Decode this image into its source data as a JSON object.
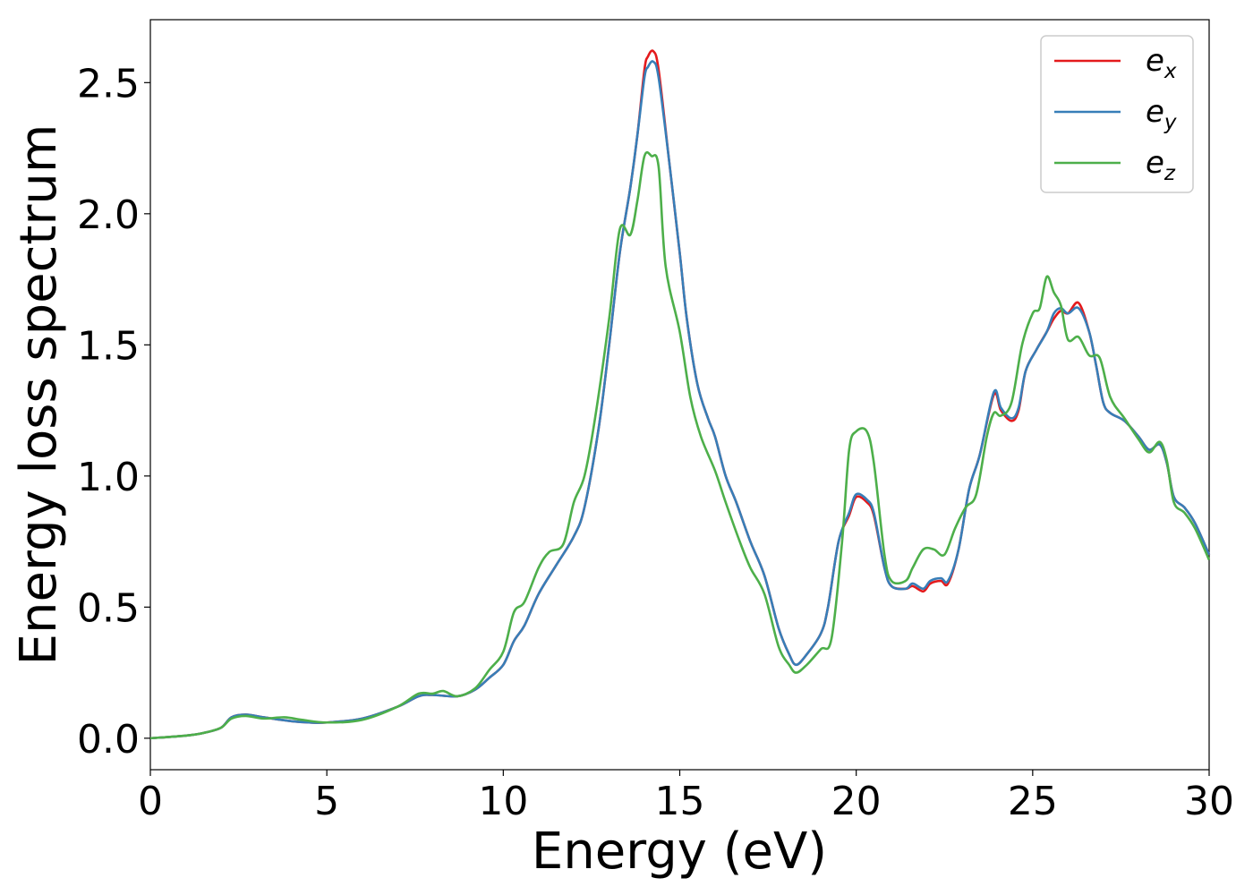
{
  "chart_data": {
    "type": "line",
    "xlabel": "Energy (eV)",
    "ylabel": "Energy loss spectrum",
    "xlim": [
      0,
      30
    ],
    "ylim": [
      -0.12,
      2.74
    ],
    "xticks": [
      0,
      5,
      10,
      15,
      20,
      25,
      30
    ],
    "xtick_labels": [
      "0",
      "5",
      "10",
      "15",
      "20",
      "25",
      "30"
    ],
    "yticks": [
      0.0,
      0.5,
      1.0,
      1.5,
      2.0,
      2.5
    ],
    "ytick_labels": [
      "0.0",
      "0.5",
      "1.0",
      "1.5",
      "2.0",
      "2.5"
    ],
    "grid": false,
    "legend_position": "top-right",
    "series": [
      {
        "name": "e_x",
        "legend_base": "e",
        "legend_sub": "x",
        "color": "#e41a1c",
        "points": [
          [
            0,
            0.0
          ],
          [
            1,
            0.01
          ],
          [
            1.5,
            0.02
          ],
          [
            2,
            0.04
          ],
          [
            2.3,
            0.08
          ],
          [
            2.7,
            0.09
          ],
          [
            3.2,
            0.08
          ],
          [
            4,
            0.065
          ],
          [
            4.5,
            0.06
          ],
          [
            5,
            0.06
          ],
          [
            6,
            0.075
          ],
          [
            7,
            0.12
          ],
          [
            7.6,
            0.16
          ],
          [
            8,
            0.165
          ],
          [
            8.7,
            0.16
          ],
          [
            9.2,
            0.185
          ],
          [
            9.6,
            0.23
          ],
          [
            10,
            0.28
          ],
          [
            10.3,
            0.37
          ],
          [
            10.6,
            0.43
          ],
          [
            11,
            0.55
          ],
          [
            11.5,
            0.66
          ],
          [
            12,
            0.77
          ],
          [
            12.3,
            0.88
          ],
          [
            12.7,
            1.18
          ],
          [
            13,
            1.5
          ],
          [
            13.3,
            1.85
          ],
          [
            13.6,
            2.1
          ],
          [
            13.8,
            2.3
          ],
          [
            14,
            2.55
          ],
          [
            14.1,
            2.6
          ],
          [
            14.25,
            2.62
          ],
          [
            14.4,
            2.55
          ],
          [
            14.7,
            2.2
          ],
          [
            15,
            1.85
          ],
          [
            15.2,
            1.6
          ],
          [
            15.5,
            1.35
          ],
          [
            15.8,
            1.22
          ],
          [
            16,
            1.15
          ],
          [
            16.3,
            1.0
          ],
          [
            16.6,
            0.9
          ],
          [
            17,
            0.75
          ],
          [
            17.4,
            0.62
          ],
          [
            17.8,
            0.42
          ],
          [
            18.1,
            0.32
          ],
          [
            18.3,
            0.28
          ],
          [
            18.6,
            0.32
          ],
          [
            19,
            0.4
          ],
          [
            19.2,
            0.5
          ],
          [
            19.5,
            0.75
          ],
          [
            19.8,
            0.85
          ],
          [
            20,
            0.92
          ],
          [
            20.3,
            0.9
          ],
          [
            20.5,
            0.85
          ],
          [
            20.8,
            0.65
          ],
          [
            21,
            0.58
          ],
          [
            21.4,
            0.57
          ],
          [
            21.6,
            0.58
          ],
          [
            21.9,
            0.56
          ],
          [
            22.1,
            0.59
          ],
          [
            22.4,
            0.6
          ],
          [
            22.6,
            0.59
          ],
          [
            22.9,
            0.72
          ],
          [
            23.2,
            0.95
          ],
          [
            23.5,
            1.08
          ],
          [
            23.9,
            1.31
          ],
          [
            24.1,
            1.25
          ],
          [
            24.4,
            1.21
          ],
          [
            24.6,
            1.25
          ],
          [
            24.8,
            1.4
          ],
          [
            25.1,
            1.48
          ],
          [
            25.4,
            1.55
          ],
          [
            25.6,
            1.6
          ],
          [
            25.8,
            1.63
          ],
          [
            26,
            1.62
          ],
          [
            26.3,
            1.66
          ],
          [
            26.6,
            1.55
          ],
          [
            26.8,
            1.42
          ],
          [
            27,
            1.28
          ],
          [
            27.2,
            1.24
          ],
          [
            27.6,
            1.21
          ],
          [
            28,
            1.15
          ],
          [
            28.3,
            1.1
          ],
          [
            28.6,
            1.12
          ],
          [
            28.8,
            1.05
          ],
          [
            29,
            0.92
          ],
          [
            29.3,
            0.88
          ],
          [
            29.6,
            0.82
          ],
          [
            30,
            0.7
          ]
        ]
      },
      {
        "name": "e_y",
        "legend_base": "e",
        "legend_sub": "y",
        "color": "#377eb8",
        "points": [
          [
            0,
            0.0
          ],
          [
            1,
            0.01
          ],
          [
            1.5,
            0.02
          ],
          [
            2,
            0.04
          ],
          [
            2.3,
            0.08
          ],
          [
            2.7,
            0.09
          ],
          [
            3.2,
            0.08
          ],
          [
            4,
            0.065
          ],
          [
            4.5,
            0.06
          ],
          [
            5,
            0.06
          ],
          [
            6,
            0.075
          ],
          [
            7,
            0.12
          ],
          [
            7.6,
            0.16
          ],
          [
            8,
            0.165
          ],
          [
            8.7,
            0.16
          ],
          [
            9.2,
            0.185
          ],
          [
            9.6,
            0.23
          ],
          [
            10,
            0.28
          ],
          [
            10.3,
            0.37
          ],
          [
            10.6,
            0.43
          ],
          [
            11,
            0.55
          ],
          [
            11.5,
            0.66
          ],
          [
            12,
            0.77
          ],
          [
            12.3,
            0.88
          ],
          [
            12.7,
            1.18
          ],
          [
            13,
            1.5
          ],
          [
            13.3,
            1.85
          ],
          [
            13.6,
            2.1
          ],
          [
            13.8,
            2.3
          ],
          [
            14,
            2.52
          ],
          [
            14.1,
            2.56
          ],
          [
            14.25,
            2.58
          ],
          [
            14.4,
            2.52
          ],
          [
            14.7,
            2.2
          ],
          [
            15,
            1.85
          ],
          [
            15.2,
            1.6
          ],
          [
            15.5,
            1.35
          ],
          [
            15.8,
            1.22
          ],
          [
            16,
            1.15
          ],
          [
            16.3,
            1.0
          ],
          [
            16.6,
            0.9
          ],
          [
            17,
            0.75
          ],
          [
            17.4,
            0.62
          ],
          [
            17.8,
            0.42
          ],
          [
            18.1,
            0.32
          ],
          [
            18.3,
            0.28
          ],
          [
            18.6,
            0.32
          ],
          [
            19,
            0.4
          ],
          [
            19.2,
            0.5
          ],
          [
            19.5,
            0.75
          ],
          [
            19.8,
            0.86
          ],
          [
            20,
            0.93
          ],
          [
            20.3,
            0.91
          ],
          [
            20.5,
            0.86
          ],
          [
            20.8,
            0.65
          ],
          [
            21,
            0.58
          ],
          [
            21.4,
            0.57
          ],
          [
            21.6,
            0.59
          ],
          [
            21.9,
            0.57
          ],
          [
            22.1,
            0.6
          ],
          [
            22.4,
            0.61
          ],
          [
            22.6,
            0.6
          ],
          [
            22.9,
            0.72
          ],
          [
            23.2,
            0.95
          ],
          [
            23.5,
            1.08
          ],
          [
            23.9,
            1.32
          ],
          [
            24.1,
            1.26
          ],
          [
            24.4,
            1.22
          ],
          [
            24.6,
            1.26
          ],
          [
            24.8,
            1.4
          ],
          [
            25.1,
            1.48
          ],
          [
            25.4,
            1.55
          ],
          [
            25.6,
            1.62
          ],
          [
            25.8,
            1.64
          ],
          [
            26,
            1.62
          ],
          [
            26.3,
            1.64
          ],
          [
            26.6,
            1.55
          ],
          [
            26.8,
            1.42
          ],
          [
            27,
            1.28
          ],
          [
            27.2,
            1.24
          ],
          [
            27.6,
            1.21
          ],
          [
            28,
            1.15
          ],
          [
            28.3,
            1.1
          ],
          [
            28.6,
            1.12
          ],
          [
            28.8,
            1.05
          ],
          [
            29,
            0.92
          ],
          [
            29.3,
            0.88
          ],
          [
            29.6,
            0.82
          ],
          [
            30,
            0.7
          ]
        ]
      },
      {
        "name": "e_z",
        "legend_base": "e",
        "legend_sub": "z",
        "color": "#4daf4a",
        "points": [
          [
            0,
            0.0
          ],
          [
            1,
            0.01
          ],
          [
            1.5,
            0.02
          ],
          [
            2,
            0.04
          ],
          [
            2.3,
            0.075
          ],
          [
            2.7,
            0.085
          ],
          [
            3.2,
            0.075
          ],
          [
            3.8,
            0.08
          ],
          [
            4.3,
            0.07
          ],
          [
            5,
            0.06
          ],
          [
            6,
            0.07
          ],
          [
            7,
            0.12
          ],
          [
            7.6,
            0.17
          ],
          [
            8,
            0.17
          ],
          [
            8.3,
            0.18
          ],
          [
            8.7,
            0.16
          ],
          [
            9.2,
            0.19
          ],
          [
            9.6,
            0.26
          ],
          [
            10,
            0.33
          ],
          [
            10.3,
            0.48
          ],
          [
            10.6,
            0.52
          ],
          [
            11,
            0.65
          ],
          [
            11.3,
            0.71
          ],
          [
            11.7,
            0.74
          ],
          [
            12,
            0.9
          ],
          [
            12.3,
            1.0
          ],
          [
            12.6,
            1.22
          ],
          [
            13,
            1.6
          ],
          [
            13.3,
            1.94
          ],
          [
            13.6,
            1.92
          ],
          [
            13.8,
            2.05
          ],
          [
            14,
            2.22
          ],
          [
            14.2,
            2.22
          ],
          [
            14.4,
            2.18
          ],
          [
            14.6,
            1.8
          ],
          [
            15,
            1.55
          ],
          [
            15.3,
            1.3
          ],
          [
            15.6,
            1.15
          ],
          [
            16,
            1.02
          ],
          [
            16.3,
            0.9
          ],
          [
            16.7,
            0.75
          ],
          [
            17,
            0.65
          ],
          [
            17.4,
            0.55
          ],
          [
            17.8,
            0.35
          ],
          [
            18.1,
            0.28
          ],
          [
            18.3,
            0.25
          ],
          [
            18.6,
            0.28
          ],
          [
            19,
            0.34
          ],
          [
            19.3,
            0.38
          ],
          [
            19.6,
            0.75
          ],
          [
            19.8,
            1.1
          ],
          [
            20,
            1.17
          ],
          [
            20.3,
            1.17
          ],
          [
            20.5,
            1.05
          ],
          [
            20.8,
            0.7
          ],
          [
            21,
            0.6
          ],
          [
            21.4,
            0.6
          ],
          [
            21.6,
            0.65
          ],
          [
            21.9,
            0.72
          ],
          [
            22.2,
            0.72
          ],
          [
            22.5,
            0.7
          ],
          [
            22.8,
            0.8
          ],
          [
            23.1,
            0.88
          ],
          [
            23.4,
            0.93
          ],
          [
            23.7,
            1.15
          ],
          [
            23.9,
            1.24
          ],
          [
            24.1,
            1.23
          ],
          [
            24.4,
            1.28
          ],
          [
            24.7,
            1.5
          ],
          [
            25,
            1.62
          ],
          [
            25.2,
            1.64
          ],
          [
            25.4,
            1.76
          ],
          [
            25.6,
            1.7
          ],
          [
            25.8,
            1.65
          ],
          [
            26,
            1.52
          ],
          [
            26.3,
            1.53
          ],
          [
            26.6,
            1.46
          ],
          [
            26.9,
            1.45
          ],
          [
            27.2,
            1.3
          ],
          [
            27.6,
            1.22
          ],
          [
            28,
            1.14
          ],
          [
            28.3,
            1.09
          ],
          [
            28.6,
            1.13
          ],
          [
            28.8,
            1.06
          ],
          [
            29,
            0.9
          ],
          [
            29.3,
            0.86
          ],
          [
            29.6,
            0.8
          ],
          [
            30,
            0.68
          ]
        ]
      }
    ]
  }
}
